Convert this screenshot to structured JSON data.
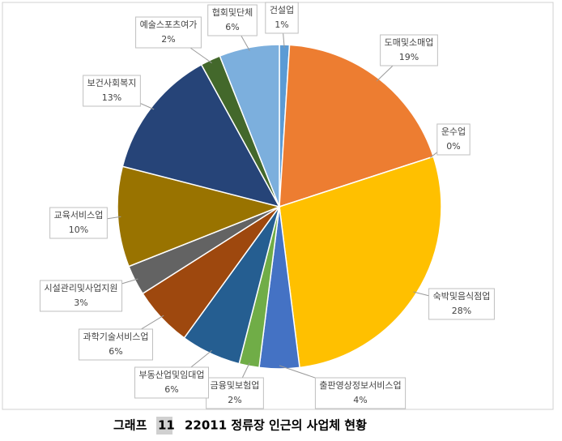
{
  "chart_data": {
    "type": "pie",
    "categories": [
      "건설업",
      "도매및소매업",
      "운수업",
      "숙박및음식점업",
      "출판영상정보서비스업",
      "금융및보험업",
      "부동산업및임대업",
      "과학기술서비스업",
      "시설관리및사업지원",
      "교육서비스업",
      "보건사회복지",
      "예술스포츠여가",
      "협회및단체"
    ],
    "values": [
      1,
      19,
      0,
      28,
      4,
      2,
      6,
      6,
      3,
      10,
      13,
      2,
      6
    ],
    "value_labels": [
      "1%",
      "19%",
      "0%",
      "28%",
      "4%",
      "2%",
      "6%",
      "6%",
      "3%",
      "10%",
      "13%",
      "2%",
      "6%"
    ],
    "colors": [
      "#5b9bd5",
      "#ed7d31",
      "#a5a5a5",
      "#ffc000",
      "#4472c4",
      "#70ad47",
      "#255e91",
      "#9e480e",
      "#636363",
      "#997300",
      "#264478",
      "#43682b",
      "#7cafdd"
    ]
  },
  "caption": {
    "label": "그래프",
    "number": "11",
    "title": "22011 정류장 인근의 사업체 현황"
  }
}
